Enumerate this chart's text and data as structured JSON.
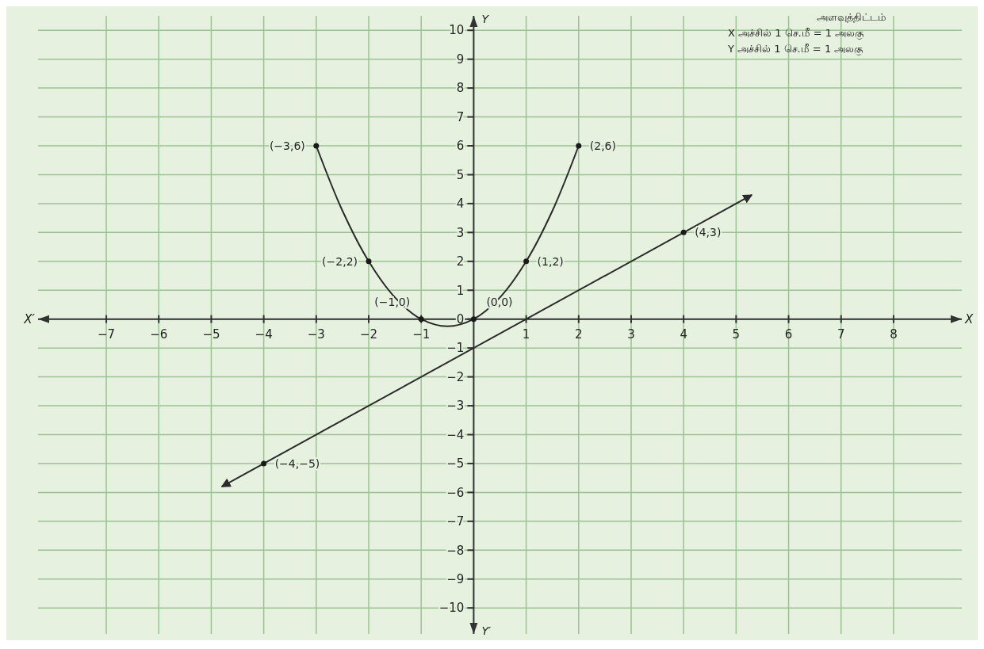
{
  "chart_data": {
    "type": "line",
    "xlabel": "X",
    "ylabel": "Y",
    "xlim": [
      -8.3,
      9.3
    ],
    "ylim": [
      -10.9,
      10.5
    ],
    "xticks": [
      -7,
      -6,
      -5,
      -4,
      -3,
      -2,
      -1,
      1,
      2,
      3,
      4,
      5,
      6,
      7,
      8
    ],
    "yticks": [
      -10,
      -9,
      -8,
      -7,
      -6,
      -5,
      -4,
      -3,
      -2,
      -1,
      0,
      1,
      2,
      3,
      4,
      5,
      6,
      7,
      8,
      9,
      10
    ],
    "grid": true,
    "line_style": "solid",
    "marker": "none",
    "series": [
      {
        "color": "#2b2b2b",
        "x": [
          -3,
          -2.5,
          -2,
          -1.5,
          -1,
          -0.5,
          0,
          0.5,
          1,
          1.5,
          2
        ],
        "values": [
          6,
          3.75,
          2,
          0.75,
          0,
          -0.25,
          0,
          0.75,
          2,
          3.75,
          6
        ]
      },
      {
        "color": "#2b2b2b",
        "x": [
          -4.8,
          5.3
        ],
        "values": [
          -5.8,
          4.3
        ]
      },
      {
        "type": "scatter",
        "color": "#1a1a1a",
        "marker": "circle",
        "x": [
          -3,
          -2,
          -1,
          0,
          1,
          2,
          4,
          -4
        ],
        "values": [
          6,
          2,
          0,
          0,
          2,
          6,
          3,
          -5
        ]
      }
    ],
    "annotations": [
      {
        "text": "(−3,6)",
        "x": -3,
        "y": 6
      },
      {
        "text": "(−2,2)",
        "x": -2,
        "y": 2
      },
      {
        "text": "(−1,0)",
        "x": -1,
        "y": 0
      },
      {
        "text": "(0,0)",
        "x": 0,
        "y": 0
      },
      {
        "text": "(1,2)",
        "x": 1,
        "y": 2
      },
      {
        "text": "(2,6)",
        "x": 2,
        "y": 6
      },
      {
        "text": "(4,3)",
        "x": 4,
        "y": 3
      },
      {
        "text": "(−4,−5)",
        "x": -4,
        "y": -5
      },
      "X′",
      "Y′",
      "அளவுத்திட்டம்",
      "X அச்சில் 1 செ.மீ = 1 அலகு",
      "Y அச்சில் 1 செ.மீ = 1 அலகு"
    ]
  }
}
